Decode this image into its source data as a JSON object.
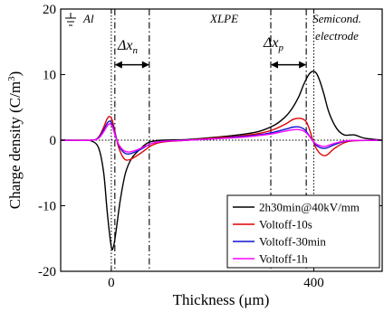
{
  "chart_data": {
    "type": "line",
    "xlabel": "Thickness (μm)",
    "ylabel": "Charge density (C/m",
    "ylabel_sup": "3",
    "ylabel_end": ")",
    "xlim": [
      -100,
      535
    ],
    "ylim": [
      -20,
      20
    ],
    "x_ticks": [
      0,
      400
    ],
    "y_ticks": [
      -20,
      -10,
      0,
      10,
      20
    ],
    "grid": false,
    "legend_position": "bottom-right",
    "annotations": {
      "al": "Al",
      "xlpe": "XLPE",
      "semicond_line1": "Semicond.",
      "semicond_line2": "electrode",
      "delta_n": "Δx",
      "delta_n_sub": "n",
      "delta_p": "Δx",
      "delta_p_sub": "p"
    },
    "vertical_lines": {
      "dotted": [
        0,
        400
      ],
      "dashdot": [
        7,
        75,
        315,
        385
      ]
    },
    "delta_n_span": [
      7,
      75
    ],
    "delta_p_span": [
      315,
      385
    ],
    "delta_arrow_y": 11.5,
    "series": [
      {
        "name": "2h30min@40kV/mm",
        "color": "#000000",
        "x": [
          -100,
          -60,
          -40,
          -25,
          -15,
          -8,
          0,
          5,
          10,
          18,
          28,
          40,
          55,
          70,
          80,
          100,
          150,
          200,
          250,
          290,
          320,
          340,
          355,
          370,
          380,
          390,
          398,
          405,
          412,
          420,
          430,
          445,
          460,
          480,
          500,
          535
        ],
        "y": [
          0,
          0,
          -0.1,
          -1.2,
          -5,
          -11,
          -16.3,
          -16,
          -13.5,
          -9,
          -5,
          -2.8,
          -1.5,
          -0.5,
          -0.2,
          0,
          0.1,
          0.4,
          0.8,
          1.3,
          2.2,
          3.3,
          4.6,
          6.6,
          8.5,
          10,
          10.5,
          10.2,
          9,
          7,
          4.2,
          1.8,
          0.8,
          0.8,
          0.3,
          0
        ]
      },
      {
        "name": "Voltoff-10s",
        "color": "#e00000",
        "x": [
          -100,
          -40,
          -25,
          -15,
          -8,
          -3,
          2,
          8,
          15,
          25,
          35,
          50,
          65,
          80,
          100,
          150,
          200,
          250,
          290,
          320,
          345,
          360,
          375,
          385,
          392,
          398,
          405,
          415,
          425,
          440,
          460,
          480,
          535
        ],
        "y": [
          0,
          0,
          0.5,
          2,
          3.3,
          3.6,
          3,
          1,
          -1.2,
          -2.8,
          -3,
          -2.4,
          -1.6,
          -0.8,
          -0.3,
          0,
          0.3,
          0.6,
          1,
          1.6,
          2.5,
          3.2,
          3.3,
          2.8,
          1.5,
          0,
          -1.3,
          -2.2,
          -2.3,
          -1.3,
          -0.4,
          -0.1,
          0
        ]
      },
      {
        "name": "Voltoff-30min",
        "color": "#1010d0",
        "x": [
          -100,
          -40,
          -25,
          -15,
          -8,
          -3,
          2,
          8,
          15,
          25,
          35,
          50,
          65,
          80,
          100,
          150,
          200,
          250,
          290,
          320,
          345,
          360,
          372,
          382,
          390,
          398,
          405,
          415,
          425,
          440,
          460,
          480,
          535
        ],
        "y": [
          0,
          0,
          0.4,
          1.6,
          2.6,
          2.9,
          2.4,
          0.8,
          -0.8,
          -1.9,
          -2.1,
          -1.7,
          -1.1,
          -0.5,
          -0.2,
          0,
          0.2,
          0.5,
          0.8,
          1.2,
          1.7,
          2,
          2,
          1.6,
          0.8,
          -0.1,
          -0.8,
          -1.2,
          -1.2,
          -0.7,
          -0.2,
          -0.05,
          0
        ]
      },
      {
        "name": "Voltoff-1h",
        "color": "#ff00ff",
        "x": [
          -100,
          -40,
          -25,
          -15,
          -8,
          -3,
          2,
          8,
          15,
          25,
          35,
          50,
          65,
          80,
          100,
          150,
          200,
          250,
          290,
          320,
          345,
          360,
          372,
          382,
          390,
          398,
          405,
          415,
          425,
          440,
          460,
          480,
          535
        ],
        "y": [
          0,
          0,
          0.3,
          1.3,
          2.2,
          2.5,
          2.1,
          0.6,
          -0.7,
          -1.6,
          -1.8,
          -1.5,
          -1,
          -0.5,
          -0.2,
          0,
          0.2,
          0.4,
          0.7,
          1,
          1.4,
          1.6,
          1.6,
          1.3,
          0.7,
          -0.1,
          -0.6,
          -0.9,
          -0.9,
          -0.5,
          -0.15,
          -0.03,
          0
        ]
      }
    ]
  }
}
